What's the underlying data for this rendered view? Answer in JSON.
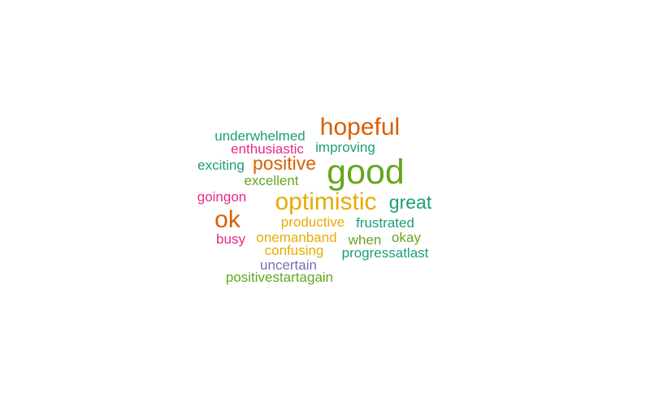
{
  "chart_data": {
    "type": "wordcloud",
    "words": [
      {
        "text": "good",
        "weight": 5,
        "color": "#66a61e"
      },
      {
        "text": "hopeful",
        "weight": 4,
        "color": "#d95f02"
      },
      {
        "text": "optimistic",
        "weight": 4,
        "color": "#e6ab02"
      },
      {
        "text": "ok",
        "weight": 4,
        "color": "#d95f02"
      },
      {
        "text": "positive",
        "weight": 3,
        "color": "#d95f02"
      },
      {
        "text": "great",
        "weight": 3,
        "color": "#1b9e77"
      },
      {
        "text": "underwhelmed",
        "weight": 1,
        "color": "#1b9e77"
      },
      {
        "text": "enthusiastic",
        "weight": 1,
        "color": "#e7298a"
      },
      {
        "text": "improving",
        "weight": 1,
        "color": "#1b9e77"
      },
      {
        "text": "exciting",
        "weight": 1,
        "color": "#1b9e77"
      },
      {
        "text": "excellent",
        "weight": 1,
        "color": "#66a61e"
      },
      {
        "text": "goingon",
        "weight": 1,
        "color": "#e7298a"
      },
      {
        "text": "productive",
        "weight": 1,
        "color": "#e6ab02"
      },
      {
        "text": "frustrated",
        "weight": 1,
        "color": "#1b9e77"
      },
      {
        "text": "busy",
        "weight": 1,
        "color": "#e7298a"
      },
      {
        "text": "onemanband",
        "weight": 1,
        "color": "#e6ab02"
      },
      {
        "text": "when",
        "weight": 1,
        "color": "#66a61e"
      },
      {
        "text": "okay",
        "weight": 1,
        "color": "#66a61e"
      },
      {
        "text": "confusing",
        "weight": 1,
        "color": "#e6ab02"
      },
      {
        "text": "progressatlast",
        "weight": 1,
        "color": "#1b9e77"
      },
      {
        "text": "uncertain",
        "weight": 1,
        "color": "#7570b3"
      },
      {
        "text": "positivestartagain",
        "weight": 1,
        "color": "#66a61e"
      }
    ]
  }
}
